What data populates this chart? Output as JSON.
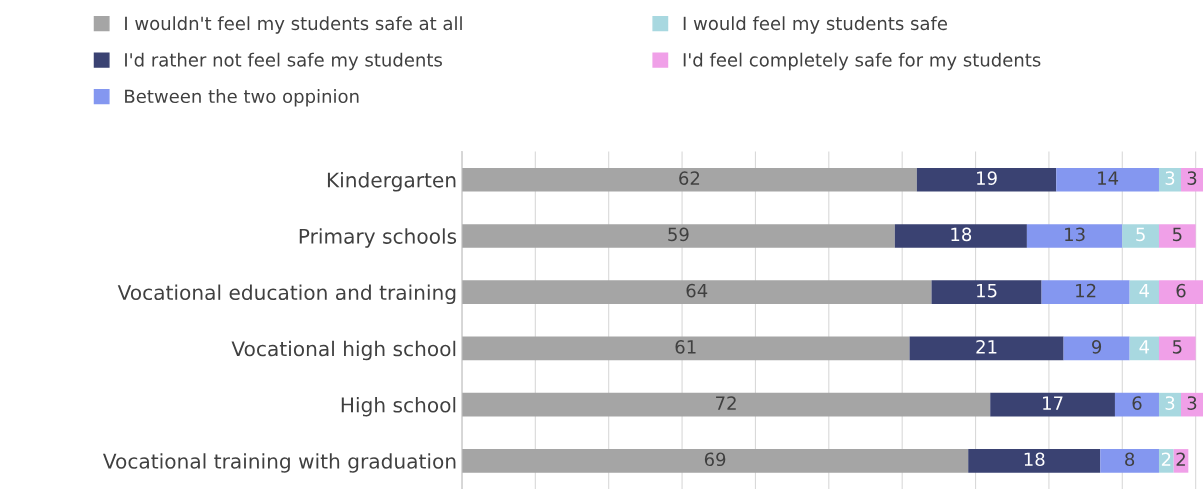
{
  "chart_data": {
    "type": "bar",
    "orientation": "horizontal",
    "stacked": true,
    "data_labels": true,
    "grid": "x",
    "legend": "top",
    "tick_labels": "y",
    "categories": [
      "Kindergarten",
      "Primary schools",
      "Vocational education and training",
      "Vocational high school",
      "High school",
      "Vocational training with graduation"
    ],
    "xlim": [
      0,
      101
    ],
    "xticks": [
      {
        "value": 0,
        "label": null
      },
      {
        "value": 10,
        "label": null
      },
      {
        "value": 20,
        "label": null
      },
      {
        "value": 30,
        "label": null
      },
      {
        "value": 40,
        "label": null
      },
      {
        "value": 50,
        "label": null
      },
      {
        "value": 60,
        "label": null
      },
      {
        "value": 70,
        "label": null
      },
      {
        "value": 80,
        "label": null
      },
      {
        "value": 90,
        "label": null
      },
      {
        "value": 100,
        "label": null
      }
    ],
    "series": [
      {
        "name": "I wouldn't feel my students safe at all",
        "color": "#a5a5a5",
        "values": [
          62,
          59,
          64,
          61,
          72,
          69
        ]
      },
      {
        "name": "I'd rather not feel safe my students",
        "color": "#3a4272",
        "values": [
          19,
          18,
          15,
          21,
          17,
          18
        ]
      },
      {
        "name": "Between the two oppinion",
        "color": "#8497f0",
        "values": [
          14,
          13,
          12,
          9,
          6,
          8
        ]
      },
      {
        "name": "I would feel my students safe",
        "color": "#a8d8e0",
        "values": [
          3,
          5,
          4,
          4,
          3,
          2
        ]
      },
      {
        "name": "I'd feel completely safe for my students",
        "color": "#f0a0e8",
        "values": [
          3,
          5,
          6,
          5,
          3,
          2
        ]
      }
    ]
  }
}
